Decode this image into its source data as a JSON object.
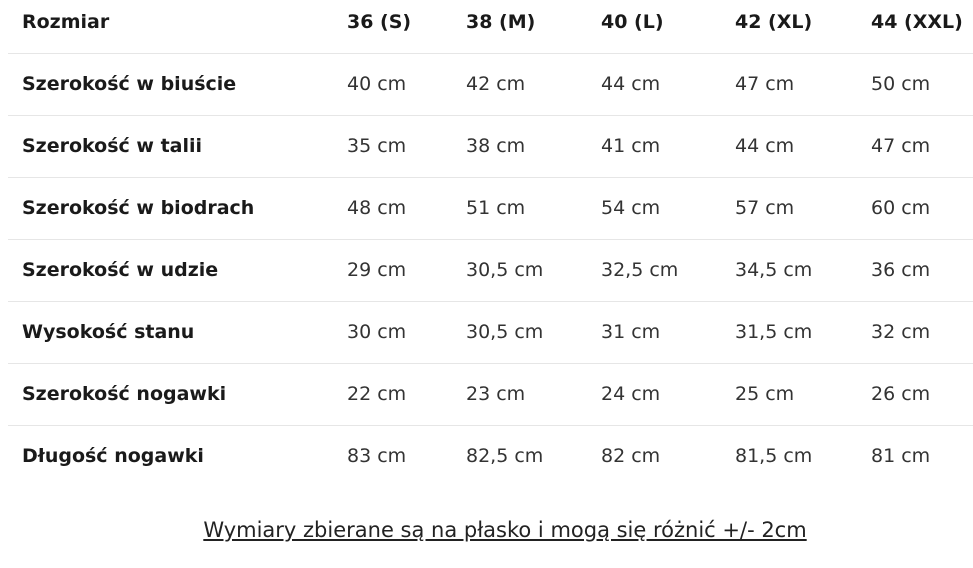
{
  "table": {
    "header": [
      "Rozmiar",
      "36 (S)",
      "38 (M)",
      "40 (L)",
      "42 (XL)",
      "44 (XXL)"
    ],
    "rows": [
      [
        "Szerokość w biuście",
        "40 cm",
        "42 cm",
        "44 cm",
        "47 cm",
        "50 cm"
      ],
      [
        "Szerokość w talii",
        "35 cm",
        "38 cm",
        "41 cm",
        "44 cm",
        "47 cm"
      ],
      [
        "Szerokość w biodrach",
        "48 cm",
        "51 cm",
        "54 cm",
        "57 cm",
        "60 cm"
      ],
      [
        "Szerokość w udzie",
        "29 cm",
        "30,5 cm",
        "32,5 cm",
        "34,5 cm",
        "36 cm"
      ],
      [
        "Wysokość stanu",
        "30 cm",
        "30,5 cm",
        "31 cm",
        "31,5 cm",
        "32 cm"
      ],
      [
        "Szerokość nogawki",
        "22 cm",
        "23 cm",
        "24 cm",
        "25 cm",
        "26 cm"
      ],
      [
        "Długość nogawki",
        "83 cm",
        "82,5 cm",
        "82 cm",
        "81,5 cm",
        "81 cm"
      ]
    ]
  },
  "footer": "Wymiary zbierane są na płasko i mogą się różnić +/- 2cm"
}
